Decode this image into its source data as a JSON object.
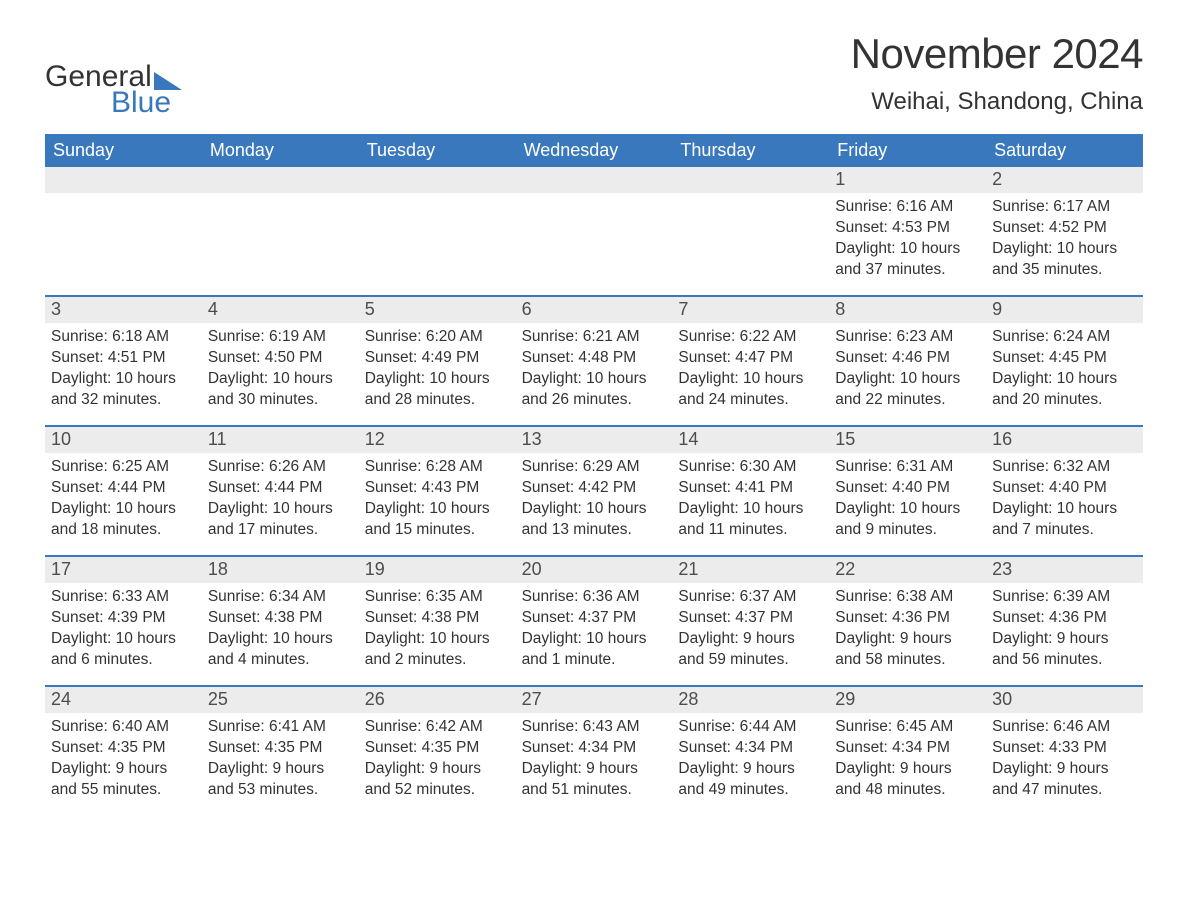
{
  "logo": {
    "text1": "General",
    "text2": "Blue",
    "tri_color": "#3a78bd"
  },
  "title": "November 2024",
  "location": "Weihai, Shandong, China",
  "colors": {
    "header_bg": "#3a78bd",
    "header_fg": "#ffffff",
    "datebar_bg": "#ececec",
    "text": "#333333",
    "rule": "#3a78bd",
    "bg": "#ffffff"
  },
  "type": "table",
  "day_names": [
    "Sunday",
    "Monday",
    "Tuesday",
    "Wednesday",
    "Thursday",
    "Friday",
    "Saturday"
  ],
  "weeks": [
    [
      {
        "date": "",
        "sunrise": "",
        "sunset": "",
        "daylight": ""
      },
      {
        "date": "",
        "sunrise": "",
        "sunset": "",
        "daylight": ""
      },
      {
        "date": "",
        "sunrise": "",
        "sunset": "",
        "daylight": ""
      },
      {
        "date": "",
        "sunrise": "",
        "sunset": "",
        "daylight": ""
      },
      {
        "date": "",
        "sunrise": "",
        "sunset": "",
        "daylight": ""
      },
      {
        "date": "1",
        "sunrise": "Sunrise: 6:16 AM",
        "sunset": "Sunset: 4:53 PM",
        "daylight": "Daylight: 10 hours and 37 minutes."
      },
      {
        "date": "2",
        "sunrise": "Sunrise: 6:17 AM",
        "sunset": "Sunset: 4:52 PM",
        "daylight": "Daylight: 10 hours and 35 minutes."
      }
    ],
    [
      {
        "date": "3",
        "sunrise": "Sunrise: 6:18 AM",
        "sunset": "Sunset: 4:51 PM",
        "daylight": "Daylight: 10 hours and 32 minutes."
      },
      {
        "date": "4",
        "sunrise": "Sunrise: 6:19 AM",
        "sunset": "Sunset: 4:50 PM",
        "daylight": "Daylight: 10 hours and 30 minutes."
      },
      {
        "date": "5",
        "sunrise": "Sunrise: 6:20 AM",
        "sunset": "Sunset: 4:49 PM",
        "daylight": "Daylight: 10 hours and 28 minutes."
      },
      {
        "date": "6",
        "sunrise": "Sunrise: 6:21 AM",
        "sunset": "Sunset: 4:48 PM",
        "daylight": "Daylight: 10 hours and 26 minutes."
      },
      {
        "date": "7",
        "sunrise": "Sunrise: 6:22 AM",
        "sunset": "Sunset: 4:47 PM",
        "daylight": "Daylight: 10 hours and 24 minutes."
      },
      {
        "date": "8",
        "sunrise": "Sunrise: 6:23 AM",
        "sunset": "Sunset: 4:46 PM",
        "daylight": "Daylight: 10 hours and 22 minutes."
      },
      {
        "date": "9",
        "sunrise": "Sunrise: 6:24 AM",
        "sunset": "Sunset: 4:45 PM",
        "daylight": "Daylight: 10 hours and 20 minutes."
      }
    ],
    [
      {
        "date": "10",
        "sunrise": "Sunrise: 6:25 AM",
        "sunset": "Sunset: 4:44 PM",
        "daylight": "Daylight: 10 hours and 18 minutes."
      },
      {
        "date": "11",
        "sunrise": "Sunrise: 6:26 AM",
        "sunset": "Sunset: 4:44 PM",
        "daylight": "Daylight: 10 hours and 17 minutes."
      },
      {
        "date": "12",
        "sunrise": "Sunrise: 6:28 AM",
        "sunset": "Sunset: 4:43 PM",
        "daylight": "Daylight: 10 hours and 15 minutes."
      },
      {
        "date": "13",
        "sunrise": "Sunrise: 6:29 AM",
        "sunset": "Sunset: 4:42 PM",
        "daylight": "Daylight: 10 hours and 13 minutes."
      },
      {
        "date": "14",
        "sunrise": "Sunrise: 6:30 AM",
        "sunset": "Sunset: 4:41 PM",
        "daylight": "Daylight: 10 hours and 11 minutes."
      },
      {
        "date": "15",
        "sunrise": "Sunrise: 6:31 AM",
        "sunset": "Sunset: 4:40 PM",
        "daylight": "Daylight: 10 hours and 9 minutes."
      },
      {
        "date": "16",
        "sunrise": "Sunrise: 6:32 AM",
        "sunset": "Sunset: 4:40 PM",
        "daylight": "Daylight: 10 hours and 7 minutes."
      }
    ],
    [
      {
        "date": "17",
        "sunrise": "Sunrise: 6:33 AM",
        "sunset": "Sunset: 4:39 PM",
        "daylight": "Daylight: 10 hours and 6 minutes."
      },
      {
        "date": "18",
        "sunrise": "Sunrise: 6:34 AM",
        "sunset": "Sunset: 4:38 PM",
        "daylight": "Daylight: 10 hours and 4 minutes."
      },
      {
        "date": "19",
        "sunrise": "Sunrise: 6:35 AM",
        "sunset": "Sunset: 4:38 PM",
        "daylight": "Daylight: 10 hours and 2 minutes."
      },
      {
        "date": "20",
        "sunrise": "Sunrise: 6:36 AM",
        "sunset": "Sunset: 4:37 PM",
        "daylight": "Daylight: 10 hours and 1 minute."
      },
      {
        "date": "21",
        "sunrise": "Sunrise: 6:37 AM",
        "sunset": "Sunset: 4:37 PM",
        "daylight": "Daylight: 9 hours and 59 minutes."
      },
      {
        "date": "22",
        "sunrise": "Sunrise: 6:38 AM",
        "sunset": "Sunset: 4:36 PM",
        "daylight": "Daylight: 9 hours and 58 minutes."
      },
      {
        "date": "23",
        "sunrise": "Sunrise: 6:39 AM",
        "sunset": "Sunset: 4:36 PM",
        "daylight": "Daylight: 9 hours and 56 minutes."
      }
    ],
    [
      {
        "date": "24",
        "sunrise": "Sunrise: 6:40 AM",
        "sunset": "Sunset: 4:35 PM",
        "daylight": "Daylight: 9 hours and 55 minutes."
      },
      {
        "date": "25",
        "sunrise": "Sunrise: 6:41 AM",
        "sunset": "Sunset: 4:35 PM",
        "daylight": "Daylight: 9 hours and 53 minutes."
      },
      {
        "date": "26",
        "sunrise": "Sunrise: 6:42 AM",
        "sunset": "Sunset: 4:35 PM",
        "daylight": "Daylight: 9 hours and 52 minutes."
      },
      {
        "date": "27",
        "sunrise": "Sunrise: 6:43 AM",
        "sunset": "Sunset: 4:34 PM",
        "daylight": "Daylight: 9 hours and 51 minutes."
      },
      {
        "date": "28",
        "sunrise": "Sunrise: 6:44 AM",
        "sunset": "Sunset: 4:34 PM",
        "daylight": "Daylight: 9 hours and 49 minutes."
      },
      {
        "date": "29",
        "sunrise": "Sunrise: 6:45 AM",
        "sunset": "Sunset: 4:34 PM",
        "daylight": "Daylight: 9 hours and 48 minutes."
      },
      {
        "date": "30",
        "sunrise": "Sunrise: 6:46 AM",
        "sunset": "Sunset: 4:33 PM",
        "daylight": "Daylight: 9 hours and 47 minutes."
      }
    ]
  ]
}
